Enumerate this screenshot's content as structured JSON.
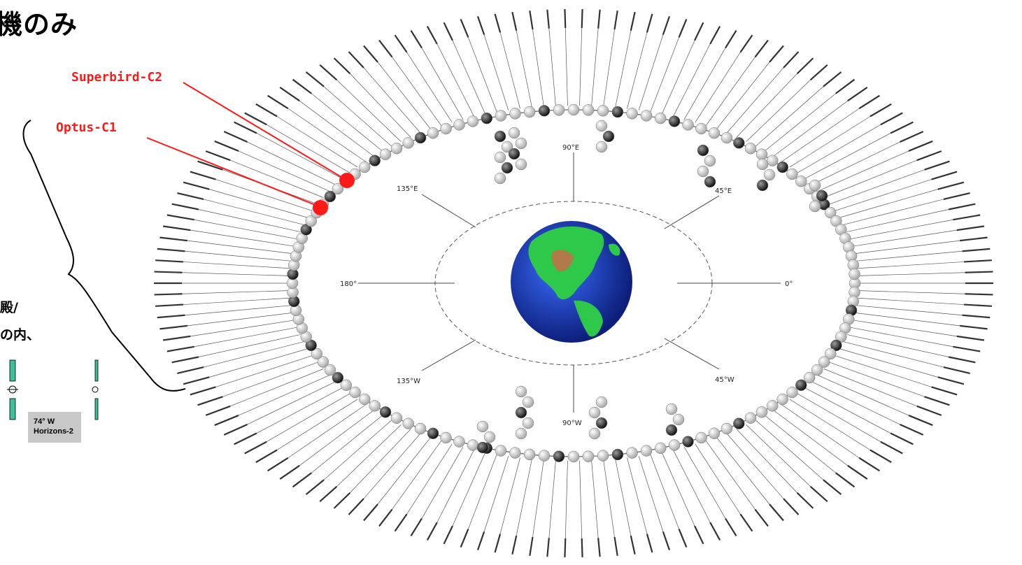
{
  "title": "機のみ",
  "annotation_lines": [
    "殿/",
    "の内、"
  ],
  "callouts": [
    {
      "label": "Superbird-C2",
      "color": "#ff1a1a"
    },
    {
      "label": "Optus-C1",
      "color": "#ff1a1a"
    }
  ],
  "satellite_box": {
    "longitude": "74° W",
    "name": "Horizons-2"
  },
  "diagram_labels": {
    "e90": "90°E",
    "e135": "135°E",
    "e45": "45°E",
    "w180": "180°",
    "zero": "0°",
    "w135": "135°W",
    "w45": "45°W",
    "w90": "90°W"
  },
  "colors": {
    "callout": "#ff1a1a",
    "ocean": "#1b3aa8",
    "land": "#2ec84a",
    "orbit_dark": "#2a2a2a",
    "orbit_light": "#d8d8d8"
  }
}
